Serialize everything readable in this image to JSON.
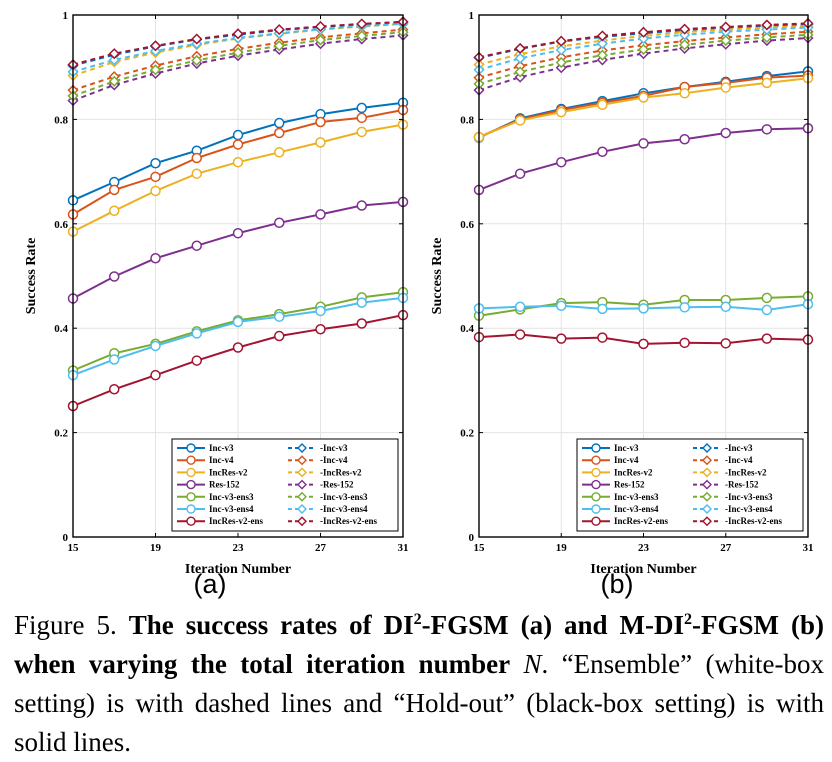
{
  "colors": {
    "Inc-v3": "#0072BD",
    "Inc-v4": "#D95319",
    "IncRes-v2": "#EDB120",
    "Res-152": "#7E2F8E",
    "Inc-v3-ens3": "#77AC30",
    "Inc-v3-ens4": "#4DBEEE",
    "IncRes-v2-ens": "#A2142F"
  },
  "chart_data": [
    {
      "type": "line",
      "sublabel": "(a)",
      "xlabel": "Iteration Number",
      "ylabel": "Success Rate",
      "xlim": [
        15,
        31
      ],
      "ylim": [
        0,
        1
      ],
      "xticks": [
        "15",
        "19",
        "23",
        "27",
        "31"
      ],
      "yticks": [
        "0",
        "0.2",
        "0.4",
        "0.6",
        "0.8",
        "1"
      ],
      "grid": true,
      "legend_position": "bottom-right",
      "x": [
        15,
        17,
        19,
        21,
        23,
        25,
        27,
        29,
        31
      ],
      "series": [
        {
          "name": "Inc-v3",
          "style": "solid",
          "values": [
            0.645,
            0.68,
            0.716,
            0.74,
            0.77,
            0.793,
            0.81,
            0.822,
            0.832
          ]
        },
        {
          "name": "Inc-v4",
          "style": "solid",
          "values": [
            0.618,
            0.665,
            0.69,
            0.726,
            0.752,
            0.774,
            0.795,
            0.803,
            0.818
          ]
        },
        {
          "name": "IncRes-v2",
          "style": "solid",
          "values": [
            0.585,
            0.625,
            0.663,
            0.696,
            0.718,
            0.737,
            0.756,
            0.776,
            0.79
          ]
        },
        {
          "name": "Res-152",
          "style": "solid",
          "values": [
            0.457,
            0.499,
            0.534,
            0.558,
            0.582,
            0.602,
            0.618,
            0.635,
            0.642
          ]
        },
        {
          "name": "Inc-v3-ens3",
          "style": "solid",
          "values": [
            0.319,
            0.352,
            0.37,
            0.394,
            0.415,
            0.427,
            0.441,
            0.459,
            0.469
          ]
        },
        {
          "name": "Inc-v3-ens4",
          "style": "solid",
          "values": [
            0.31,
            0.34,
            0.366,
            0.39,
            0.412,
            0.422,
            0.433,
            0.449,
            0.458
          ]
        },
        {
          "name": "IncRes-v2-ens",
          "style": "solid",
          "values": [
            0.251,
            0.283,
            0.31,
            0.338,
            0.363,
            0.385,
            0.398,
            0.409,
            0.425
          ]
        },
        {
          "name": "-Inc-v3",
          "style": "dashed",
          "values": [
            0.903,
            0.924,
            0.94,
            0.953,
            0.962,
            0.971,
            0.977,
            0.982,
            0.986
          ]
        },
        {
          "name": "-Inc-v4",
          "style": "dashed",
          "values": [
            0.856,
            0.882,
            0.903,
            0.921,
            0.935,
            0.947,
            0.957,
            0.965,
            0.972
          ]
        },
        {
          "name": "-IncRes-v2",
          "style": "dashed",
          "values": [
            0.884,
            0.91,
            0.928,
            0.943,
            0.955,
            0.964,
            0.972,
            0.978,
            0.983
          ]
        },
        {
          "name": "-Res-152",
          "style": "dashed",
          "values": [
            0.836,
            0.866,
            0.888,
            0.907,
            0.922,
            0.934,
            0.945,
            0.954,
            0.961
          ]
        },
        {
          "name": "-Inc-v3-ens3",
          "style": "dashed",
          "values": [
            0.845,
            0.873,
            0.895,
            0.913,
            0.928,
            0.941,
            0.952,
            0.96,
            0.967
          ]
        },
        {
          "name": "-Inc-v3-ens4",
          "style": "dashed",
          "values": [
            0.891,
            0.914,
            0.931,
            0.945,
            0.956,
            0.965,
            0.973,
            0.979,
            0.983
          ]
        },
        {
          "name": "-IncRes-v2-ens",
          "style": "dashed",
          "values": [
            0.905,
            0.926,
            0.941,
            0.954,
            0.964,
            0.972,
            0.978,
            0.983,
            0.987
          ]
        }
      ]
    },
    {
      "type": "line",
      "sublabel": "(b)",
      "xlabel": "Iteration Number",
      "ylabel": "Success Rate",
      "xlim": [
        15,
        31
      ],
      "ylim": [
        0,
        1
      ],
      "xticks": [
        "15",
        "19",
        "23",
        "27",
        "31"
      ],
      "yticks": [
        "0",
        "0.2",
        "0.4",
        "0.6",
        "0.8",
        "1"
      ],
      "grid": true,
      "legend_position": "bottom-right",
      "x": [
        15,
        17,
        19,
        21,
        23,
        25,
        27,
        29,
        31
      ],
      "series": [
        {
          "name": "Inc-v3",
          "style": "solid",
          "values": [
            0.765,
            0.802,
            0.82,
            0.835,
            0.85,
            0.862,
            0.872,
            0.883,
            0.892
          ]
        },
        {
          "name": "Inc-v4",
          "style": "solid",
          "values": [
            0.766,
            0.8,
            0.818,
            0.832,
            0.845,
            0.862,
            0.87,
            0.88,
            0.884
          ]
        },
        {
          "name": "IncRes-v2",
          "style": "solid",
          "values": [
            0.766,
            0.798,
            0.814,
            0.828,
            0.842,
            0.85,
            0.861,
            0.87,
            0.879
          ]
        },
        {
          "name": "Res-152",
          "style": "solid",
          "values": [
            0.665,
            0.696,
            0.718,
            0.738,
            0.754,
            0.762,
            0.774,
            0.781,
            0.783
          ]
        },
        {
          "name": "Inc-v3-ens3",
          "style": "solid",
          "values": [
            0.424,
            0.436,
            0.448,
            0.45,
            0.445,
            0.454,
            0.454,
            0.458,
            0.461
          ]
        },
        {
          "name": "Inc-v3-ens4",
          "style": "solid",
          "values": [
            0.438,
            0.441,
            0.443,
            0.437,
            0.438,
            0.44,
            0.441,
            0.435,
            0.446
          ]
        },
        {
          "name": "IncRes-v2-ens",
          "style": "solid",
          "values": [
            0.383,
            0.388,
            0.38,
            0.382,
            0.37,
            0.372,
            0.371,
            0.38,
            0.378
          ]
        },
        {
          "name": "-Inc-v3",
          "style": "dashed",
          "values": [
            0.918,
            0.935,
            0.949,
            0.958,
            0.965,
            0.971,
            0.976,
            0.979,
            0.982
          ]
        },
        {
          "name": "-Inc-v4",
          "style": "dashed",
          "values": [
            0.88,
            0.902,
            0.919,
            0.932,
            0.942,
            0.95,
            0.957,
            0.963,
            0.968
          ]
        },
        {
          "name": "-IncRes-v2",
          "style": "dashed",
          "values": [
            0.905,
            0.925,
            0.94,
            0.951,
            0.96,
            0.967,
            0.972,
            0.976,
            0.979
          ]
        },
        {
          "name": "-Res-152",
          "style": "dashed",
          "values": [
            0.856,
            0.881,
            0.899,
            0.914,
            0.926,
            0.936,
            0.944,
            0.951,
            0.956
          ]
        },
        {
          "name": "-Inc-v3-ens3",
          "style": "dashed",
          "values": [
            0.868,
            0.891,
            0.909,
            0.923,
            0.934,
            0.943,
            0.951,
            0.957,
            0.962
          ]
        },
        {
          "name": "-Inc-v3-ens4",
          "style": "dashed",
          "values": [
            0.895,
            0.917,
            0.933,
            0.945,
            0.955,
            0.962,
            0.968,
            0.972,
            0.976
          ]
        },
        {
          "name": "-IncRes-v2-ens",
          "style": "dashed",
          "values": [
            0.919,
            0.936,
            0.95,
            0.96,
            0.967,
            0.973,
            0.977,
            0.981,
            0.984
          ]
        }
      ]
    }
  ],
  "caption": {
    "prefix": "Figure 5. ",
    "bold_1": "The success rates of DI",
    "sup_1": "2",
    "bold_2": "-FGSM (a) and M-DI",
    "sup_2": "2",
    "bold_3": "-FGSM (b) when varying the total iteration number",
    "math": "N",
    "rest": ". “Ensemble” (white-box setting) is with dashed lines and “Hold-out” (black-box setting) is with solid lines."
  }
}
